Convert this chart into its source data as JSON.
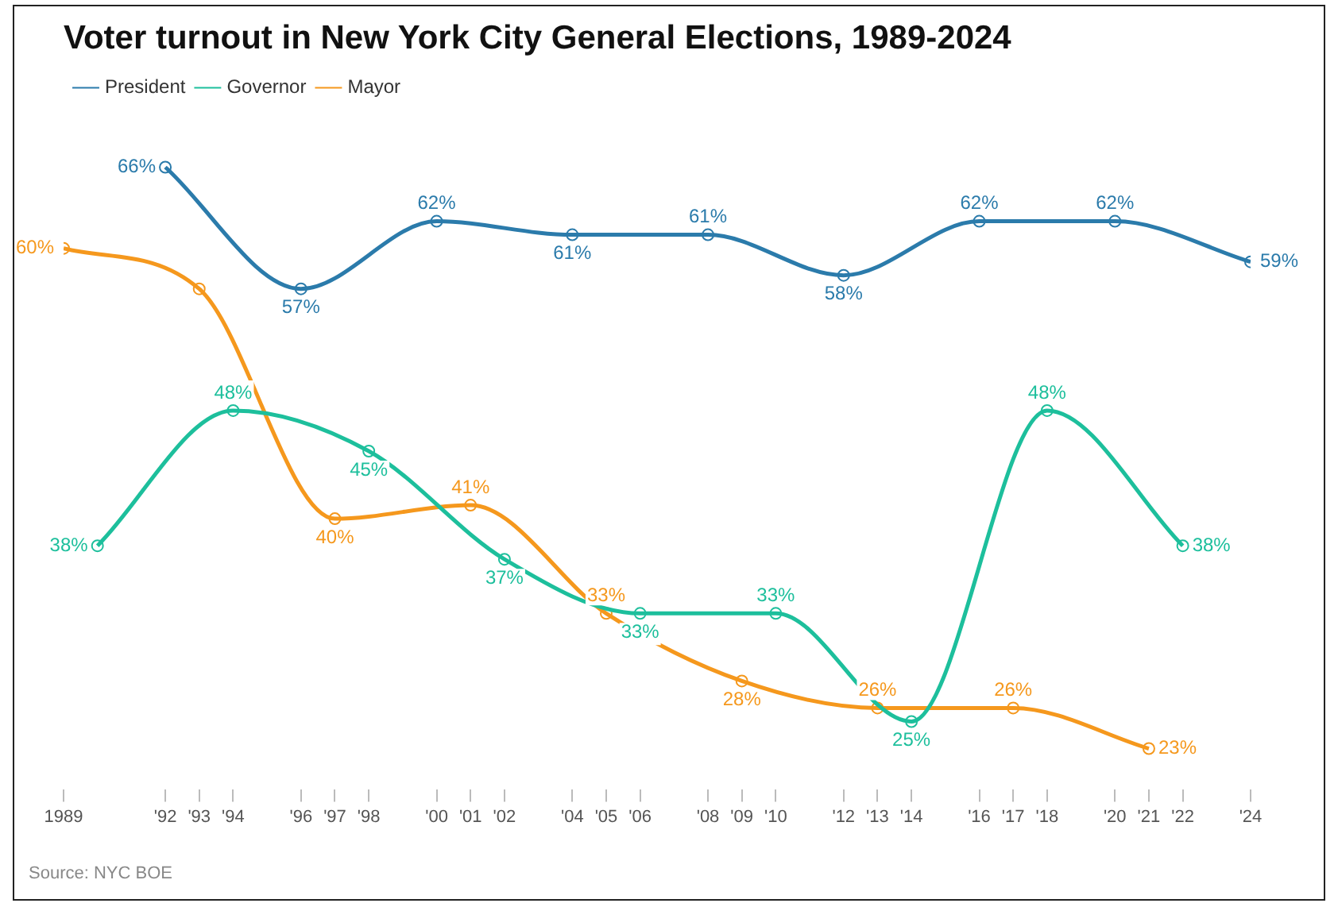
{
  "chart_data": {
    "type": "line",
    "title": "Voter turnout in New York City General Elections, 1989-2024",
    "xlim": [
      1989,
      2024
    ],
    "xticks": [
      1989,
      {
        "value": 1992,
        "label": "'92"
      },
      {
        "value": 1993,
        "label": "'93"
      },
      {
        "value": 1994,
        "label": "'94"
      },
      {
        "value": 1996,
        "label": "'96"
      },
      {
        "value": 1997,
        "label": "'97"
      },
      {
        "value": 1998,
        "label": "'98"
      },
      {
        "value": 2000,
        "label": "'00"
      },
      {
        "value": 2001,
        "label": "'01"
      },
      {
        "value": 2002,
        "label": "'02"
      },
      {
        "value": 2004,
        "label": "'04"
      },
      {
        "value": 2005,
        "label": "'05"
      },
      {
        "value": 2006,
        "label": "'06"
      },
      {
        "value": 2008,
        "label": "'08"
      },
      {
        "value": 2009,
        "label": "'09"
      },
      {
        "value": 2010,
        "label": "'10"
      },
      {
        "value": 2012,
        "label": "'12"
      },
      {
        "value": 2013,
        "label": "'13"
      },
      {
        "value": 2014,
        "label": "'14"
      },
      {
        "value": 2016,
        "label": "'16"
      },
      {
        "value": 2017,
        "label": "'17"
      },
      {
        "value": 2018,
        "label": "'18"
      },
      {
        "value": 2020,
        "label": "'20"
      },
      {
        "value": 2021,
        "label": "'21"
      },
      {
        "value": 2022,
        "label": "'22"
      },
      {
        "value": 2024,
        "label": "'24"
      }
    ],
    "tick_labels": "x",
    "grid": false,
    "legend": "top left",
    "marker": "circle",
    "series": [
      {
        "name": "President",
        "color": "#2b7bab",
        "x": [
          1992,
          1996,
          2000,
          2004,
          2008,
          2012,
          2016,
          2020,
          2024
        ],
        "values": [
          66,
          57,
          62,
          61,
          61,
          58,
          62,
          62,
          59
        ],
        "value_labels": [
          "66%",
          "57%",
          "62%",
          "61%",
          "61%",
          "58%",
          "62%",
          "62%",
          "59%"
        ]
      },
      {
        "name": "Governor",
        "color": "#1dbf9c",
        "x": [
          1990,
          1994,
          1998,
          2002,
          2006,
          2010,
          2014,
          2018,
          2022
        ],
        "values": [
          38,
          48,
          45,
          37,
          33,
          33,
          25,
          48,
          38
        ],
        "value_labels": [
          "38%",
          "48%",
          "45%",
          "37%",
          "33%",
          "33%",
          "25%",
          "48%",
          "38%"
        ]
      },
      {
        "name": "Mayor",
        "color": "#f5981d",
        "x": [
          1989,
          1993,
          1997,
          2001,
          2005,
          2009,
          2013,
          2017,
          2021
        ],
        "values": [
          60,
          57,
          40,
          41,
          33,
          28,
          26,
          26,
          23
        ],
        "value_labels": [
          "60%",
          null,
          "40%",
          "41%",
          "33%",
          "28%",
          "26%",
          "26%",
          "23%"
        ]
      }
    ],
    "annotations": [
      "Source: NYC BOE"
    ]
  }
}
